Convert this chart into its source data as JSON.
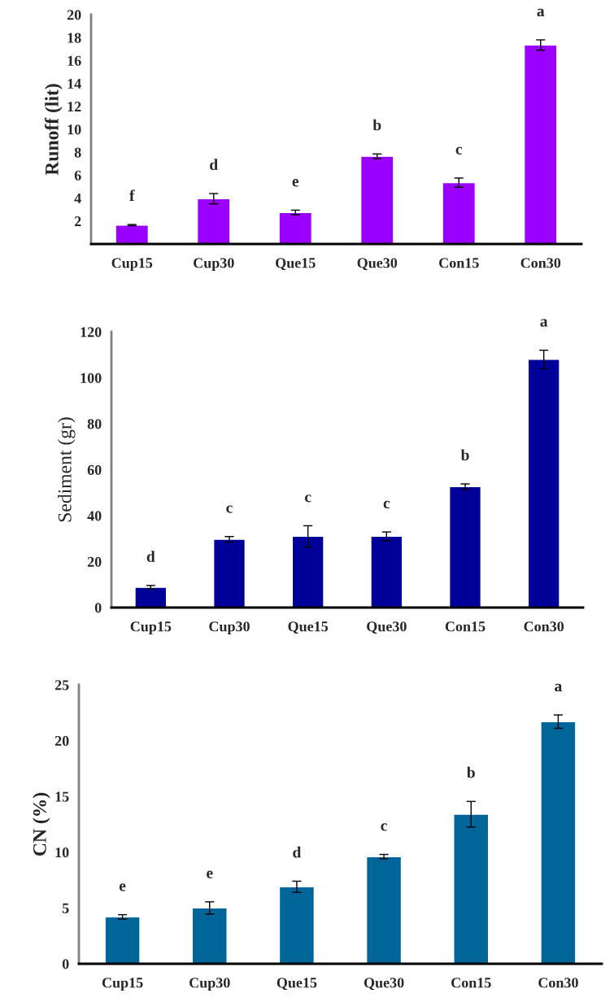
{
  "chart_data": [
    {
      "type": "bar",
      "ylabel": "Runoff (lit)",
      "categories": [
        "Cup15",
        "Cup30",
        "Que15",
        "Que30",
        "Con15",
        "Con30"
      ],
      "color": "#9900ff",
      "values": [
        1.65,
        3.95,
        2.75,
        7.65,
        5.35,
        17.35
      ],
      "errors": [
        0.05,
        0.45,
        0.2,
        0.2,
        0.4,
        0.45
      ],
      "ylim": [
        0,
        20
      ],
      "yticks": [
        {
          "value": 0,
          "label": null
        },
        2,
        4,
        6,
        8,
        10,
        12,
        14,
        16,
        18,
        20
      ],
      "grid": false,
      "legend": false,
      "value_labels": [
        "f",
        "d",
        "e",
        "b",
        "c",
        "a"
      ]
    },
    {
      "type": "bar",
      "ylabel": "Sediment (gr)",
      "categories": [
        "Cup15",
        "Cup30",
        "Que15",
        "Que30",
        "Con15",
        "Con30"
      ],
      "color": "#000099",
      "values": [
        8.8,
        29.7,
        31,
        31,
        52.6,
        108
      ],
      "errors": [
        0.8,
        1.2,
        4.6,
        1.9,
        1.2,
        4
      ],
      "ylim": [
        0,
        120
      ],
      "yticks": [
        0,
        20,
        40,
        60,
        80,
        100,
        120
      ],
      "grid": false,
      "legend": false,
      "value_labels": [
        "d",
        "c",
        "c",
        "c",
        "b",
        "a"
      ]
    },
    {
      "type": "bar",
      "ylabel": "CN (%)",
      "categories": [
        "Cup15",
        "Cup30",
        "Que15",
        "Que30",
        "Con15",
        "Con30"
      ],
      "color": "#006699",
      "values": [
        4.2,
        5.0,
        6.9,
        9.6,
        13.4,
        21.7
      ],
      "errors": [
        0.2,
        0.55,
        0.5,
        0.2,
        1.15,
        0.6
      ],
      "ylim": [
        0,
        25
      ],
      "yticks": [
        0,
        5,
        10,
        15,
        20,
        25
      ],
      "grid": false,
      "legend": false,
      "value_labels": [
        "e",
        "e",
        "d",
        "c",
        "b",
        "a"
      ]
    }
  ]
}
